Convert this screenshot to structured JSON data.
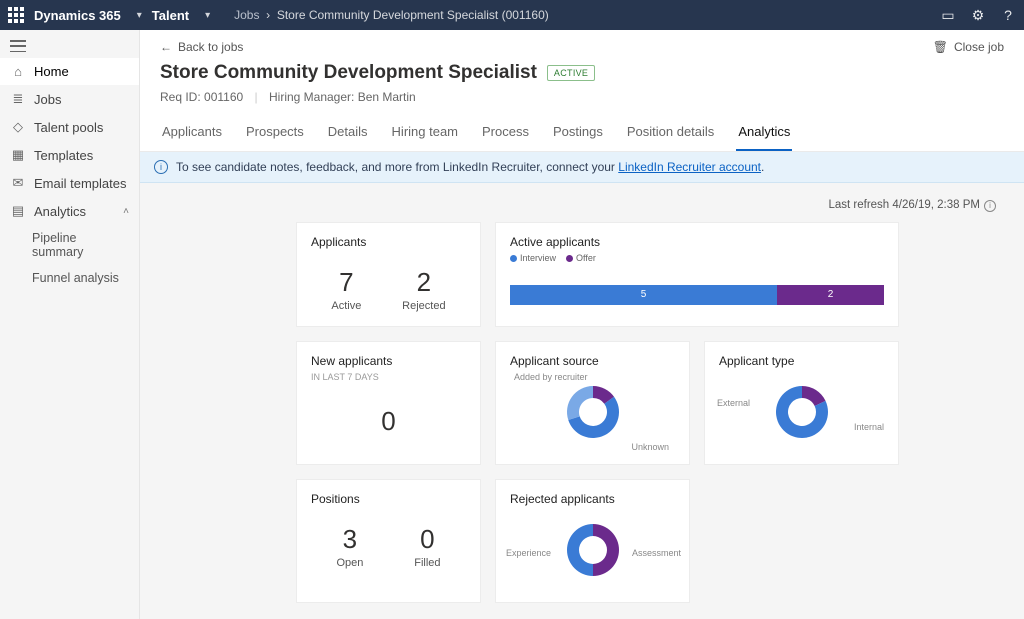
{
  "topbar": {
    "brand": "Dynamics 365",
    "module": "Talent",
    "breadcrumb_root": "Jobs",
    "breadcrumb_leaf": "Store Community Development Specialist (001160)"
  },
  "sidebar": {
    "items": [
      {
        "icon": "⌂",
        "label": "Home"
      },
      {
        "icon": "≣",
        "label": "Jobs"
      },
      {
        "icon": "◇",
        "label": "Talent pools"
      },
      {
        "icon": "▦",
        "label": "Templates"
      },
      {
        "icon": "✉",
        "label": "Email templates"
      },
      {
        "icon": "▤",
        "label": "Analytics"
      }
    ],
    "sub": [
      "Pipeline summary",
      "Funnel analysis"
    ]
  },
  "page": {
    "back": "Back to jobs",
    "close": "Close job",
    "title": "Store Community Development Specialist",
    "badge": "ACTIVE",
    "req_label": "Req ID: 001160",
    "mgr_label": "Hiring Manager: Ben Martin",
    "tabs": [
      "Applicants",
      "Prospects",
      "Details",
      "Hiring team",
      "Process",
      "Postings",
      "Position details",
      "Analytics"
    ],
    "active_tab": 7,
    "banner_text": "To see candidate notes, feedback, and more from LinkedIn Recruiter, connect your ",
    "banner_link": "LinkedIn Recruiter account",
    "refresh": "Last refresh 4/26/19, 2:38 PM"
  },
  "colors": {
    "blue": "#3a7bd5",
    "purple": "#6b2a8c",
    "lightblue": "#7aa9e6"
  },
  "cards": {
    "applicants": {
      "title": "Applicants",
      "kpis": [
        {
          "num": "7",
          "lbl": "Active"
        },
        {
          "num": "2",
          "lbl": "Rejected"
        }
      ]
    },
    "active": {
      "title": "Active applicants",
      "series": [
        {
          "label": "Interview",
          "color": "#3a7bd5",
          "value": 5
        },
        {
          "label": "Offer",
          "color": "#6b2a8c",
          "value": 2
        }
      ]
    },
    "newapp": {
      "title": "New applicants",
      "subtitle": "IN LAST 7 DAYS",
      "value": "0"
    },
    "source": {
      "title": "Applicant source",
      "labels": {
        "top": "Added by recruiter",
        "bottom": "Unknown"
      },
      "segments": [
        {
          "color": "#6b2a8c",
          "pct": 15
        },
        {
          "color": "#3a7bd5",
          "pct": 55
        },
        {
          "color": "#7aa9e6",
          "pct": 30
        }
      ]
    },
    "type": {
      "title": "Applicant type",
      "labels": {
        "left": "External",
        "right": "Internal"
      },
      "segments": [
        {
          "color": "#6b2a8c",
          "pct": 18
        },
        {
          "color": "#3a7bd5",
          "pct": 82
        }
      ]
    },
    "positions": {
      "title": "Positions",
      "kpis": [
        {
          "num": "3",
          "lbl": "Open"
        },
        {
          "num": "0",
          "lbl": "Filled"
        }
      ]
    },
    "rejected": {
      "title": "Rejected applicants",
      "labels": {
        "left": "Experience",
        "right": "Assessment"
      },
      "segments": [
        {
          "color": "#6b2a8c",
          "pct": 50
        },
        {
          "color": "#3a7bd5",
          "pct": 50
        }
      ]
    }
  }
}
